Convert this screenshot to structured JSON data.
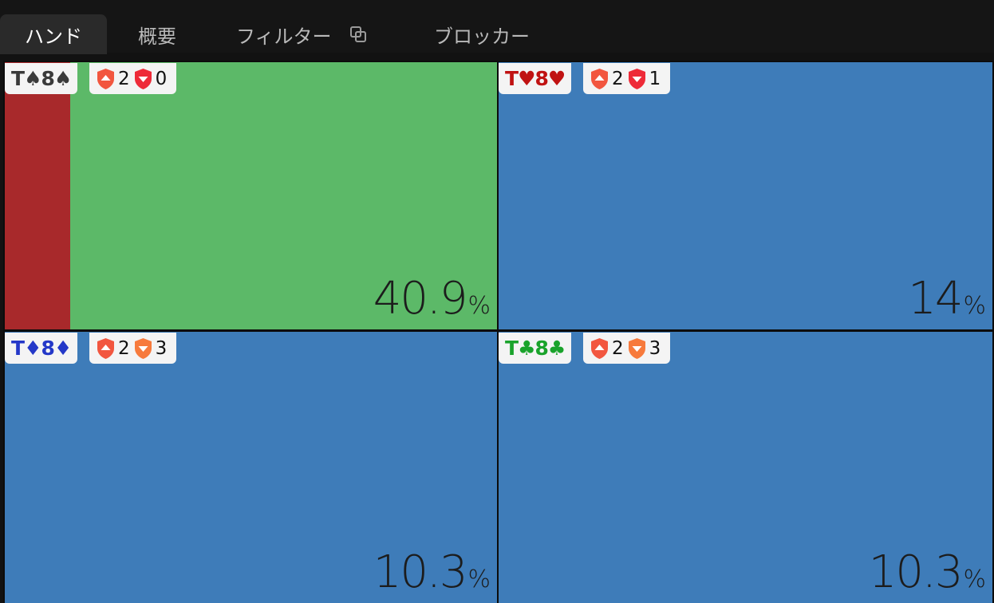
{
  "tabs": [
    {
      "label": "ハンド",
      "active": true
    },
    {
      "label": "概要",
      "active": false
    },
    {
      "label": "フィルター",
      "active": false,
      "icon": "copy-icon"
    },
    {
      "label": "ブロッカー",
      "active": false
    }
  ],
  "colors": {
    "action_green": "#5cb968",
    "action_red": "#a8292b",
    "action_blue": "#3e7cb9",
    "spade": "#3a3a3a",
    "heart": "#c01212",
    "diamond": "#2438c8",
    "club": "#1aa32b",
    "shield_up": "#f2563f",
    "shield_down_red": "#ee2a38",
    "shield_down_orange": "#f77a3c"
  },
  "hands": [
    {
      "rank1": "T",
      "rank2": "8",
      "suit": "♠",
      "suit_name": "spade",
      "blockers_up": "2",
      "blockers_down": "0",
      "down_shield": "red",
      "pct_value": "40.9",
      "pct_unit": "%",
      "strategy": [
        {
          "action": "red",
          "fraction": 0.133
        },
        {
          "action": "green",
          "fraction": 0.867
        }
      ]
    },
    {
      "rank1": "T",
      "rank2": "8",
      "suit": "♥",
      "suit_name": "heart",
      "blockers_up": "2",
      "blockers_down": "1",
      "down_shield": "red",
      "pct_value": "14",
      "pct_unit": "%",
      "strategy": [
        {
          "action": "blue",
          "fraction": 1.0
        }
      ]
    },
    {
      "rank1": "T",
      "rank2": "8",
      "suit": "♦",
      "suit_name": "diamond",
      "blockers_up": "2",
      "blockers_down": "3",
      "down_shield": "orange",
      "pct_value": "10.3",
      "pct_unit": "%",
      "strategy": [
        {
          "action": "blue",
          "fraction": 1.0
        }
      ]
    },
    {
      "rank1": "T",
      "rank2": "8",
      "suit": "♣",
      "suit_name": "club",
      "blockers_up": "2",
      "blockers_down": "3",
      "down_shield": "orange",
      "pct_value": "10.3",
      "pct_unit": "%",
      "strategy": [
        {
          "action": "blue",
          "fraction": 1.0
        }
      ]
    }
  ]
}
